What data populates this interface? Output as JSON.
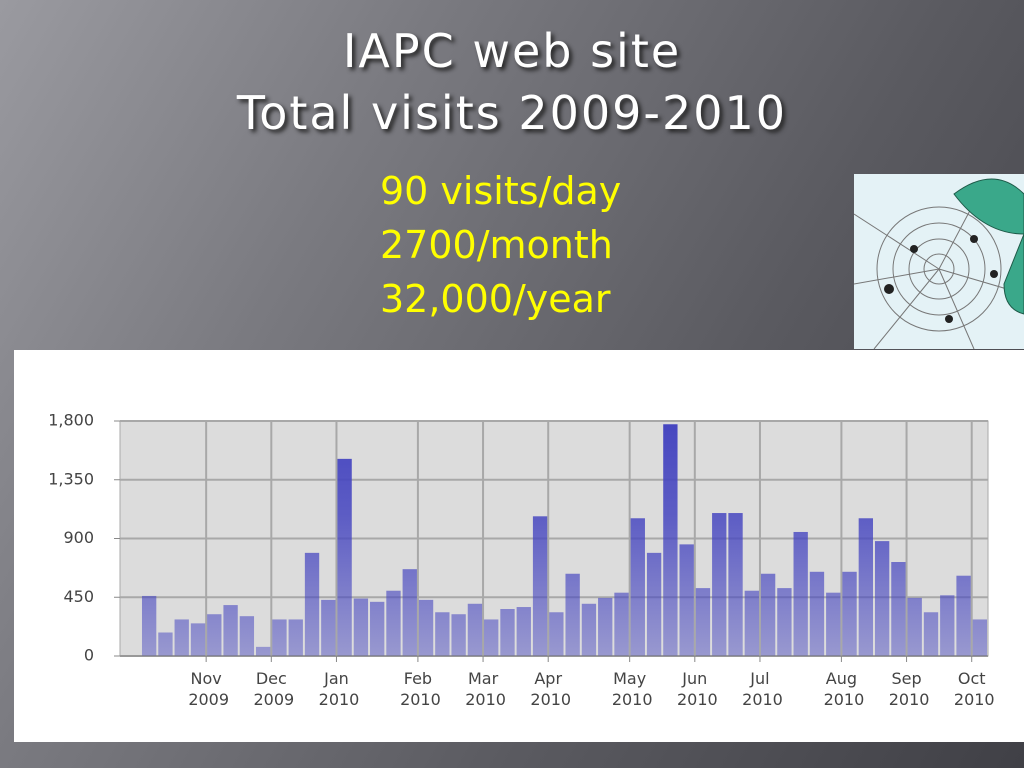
{
  "title": [
    "IAPC web site",
    "Total visits 2009-2010"
  ],
  "highlights": [
    "90 visits/day",
    "2700/month",
    "32,000/year"
  ],
  "chart_data": {
    "type": "bar",
    "categories": [
      null,
      null,
      null,
      null,
      "Nov 2009",
      null,
      null,
      null,
      "Dec 2009",
      null,
      null,
      null,
      "Jan 2010",
      null,
      null,
      null,
      null,
      "Feb 2010",
      null,
      null,
      null,
      "Mar 2010",
      null,
      null,
      null,
      "Apr 2010",
      null,
      null,
      null,
      null,
      "May 2010",
      null,
      null,
      null,
      "Jun 2010",
      null,
      null,
      null,
      "Jul 2010",
      null,
      null,
      null,
      null,
      "Aug 2010",
      null,
      null,
      null,
      "Sep 2010",
      null,
      null,
      null,
      "Oct 2010"
    ],
    "values": [
      460,
      180,
      280,
      250,
      320,
      390,
      305,
      70,
      280,
      280,
      790,
      430,
      1510,
      440,
      415,
      500,
      665,
      430,
      335,
      320,
      400,
      280,
      360,
      375,
      1070,
      335,
      630,
      400,
      445,
      485,
      1055,
      790,
      1775,
      855,
      520,
      1095,
      1095,
      500,
      630,
      520,
      950,
      645,
      485,
      645,
      1055,
      880,
      720,
      445,
      335,
      465,
      615,
      280
    ],
    "color": "#4646c0",
    "ylim": [
      0,
      1800
    ],
    "yticks": [
      0,
      450,
      900,
      {
        "value": 1350,
        "label": "1,350"
      },
      {
        "value": 1800,
        "label": "1,800"
      }
    ],
    "grid": true
  }
}
